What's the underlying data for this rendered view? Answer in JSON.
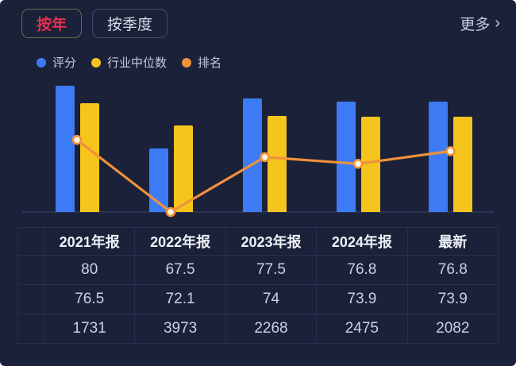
{
  "tabs": {
    "by_year": "按年",
    "by_quarter": "按季度"
  },
  "more_link": {
    "label": "更多",
    "chevron": "›"
  },
  "legend": [
    {
      "name": "评分",
      "color": "#3D7BF4"
    },
    {
      "name": "行业中位数",
      "color": "#F5C51D"
    },
    {
      "name": "排名",
      "color": "#F0913C"
    }
  ],
  "table": {
    "headers": [
      "2021年报",
      "2022年报",
      "2023年报",
      "2024年报",
      "最新"
    ],
    "rows": [
      {
        "series": "评分",
        "dot_color": "#3D7BF4",
        "values": [
          "80",
          "67.5",
          "77.5",
          "76.8",
          "76.8"
        ]
      },
      {
        "series": "行业中位数",
        "dot_color": "#F5C51D",
        "values": [
          "76.5",
          "72.1",
          "74",
          "73.9",
          "73.9"
        ]
      },
      {
        "series": "排名",
        "dot_color": "#F0913C",
        "values": [
          "1731",
          "3973",
          "2268",
          "2475",
          "2082"
        ]
      }
    ]
  },
  "chart_data": {
    "type": "combo",
    "categories": [
      "2021年报",
      "2022年报",
      "2023年报",
      "2024年报",
      "最新"
    ],
    "series": [
      {
        "name": "评分",
        "type": "bar",
        "color": "#3D7BF4",
        "values": [
          80,
          67.5,
          77.5,
          76.8,
          76.8
        ]
      },
      {
        "name": "行业中位数",
        "type": "bar",
        "color": "#F5C51D",
        "values": [
          76.5,
          72.1,
          74,
          73.9,
          73.9
        ]
      },
      {
        "name": "排名",
        "type": "line",
        "color": "#F0913C",
        "axis": "rank",
        "values": [
          1731,
          3973,
          2268,
          2475,
          2082
        ]
      }
    ],
    "value_axis": {
      "min": 55,
      "max": 82,
      "visible": false
    },
    "rank_axis": {
      "min": 0,
      "max": 3973,
      "inverted": true,
      "visible": false
    },
    "legend_position": "top-left",
    "grid": false,
    "colors": {
      "background": "#1A2139",
      "axis_line": "#2A3355",
      "point_fill": "#FFF4DF"
    }
  }
}
